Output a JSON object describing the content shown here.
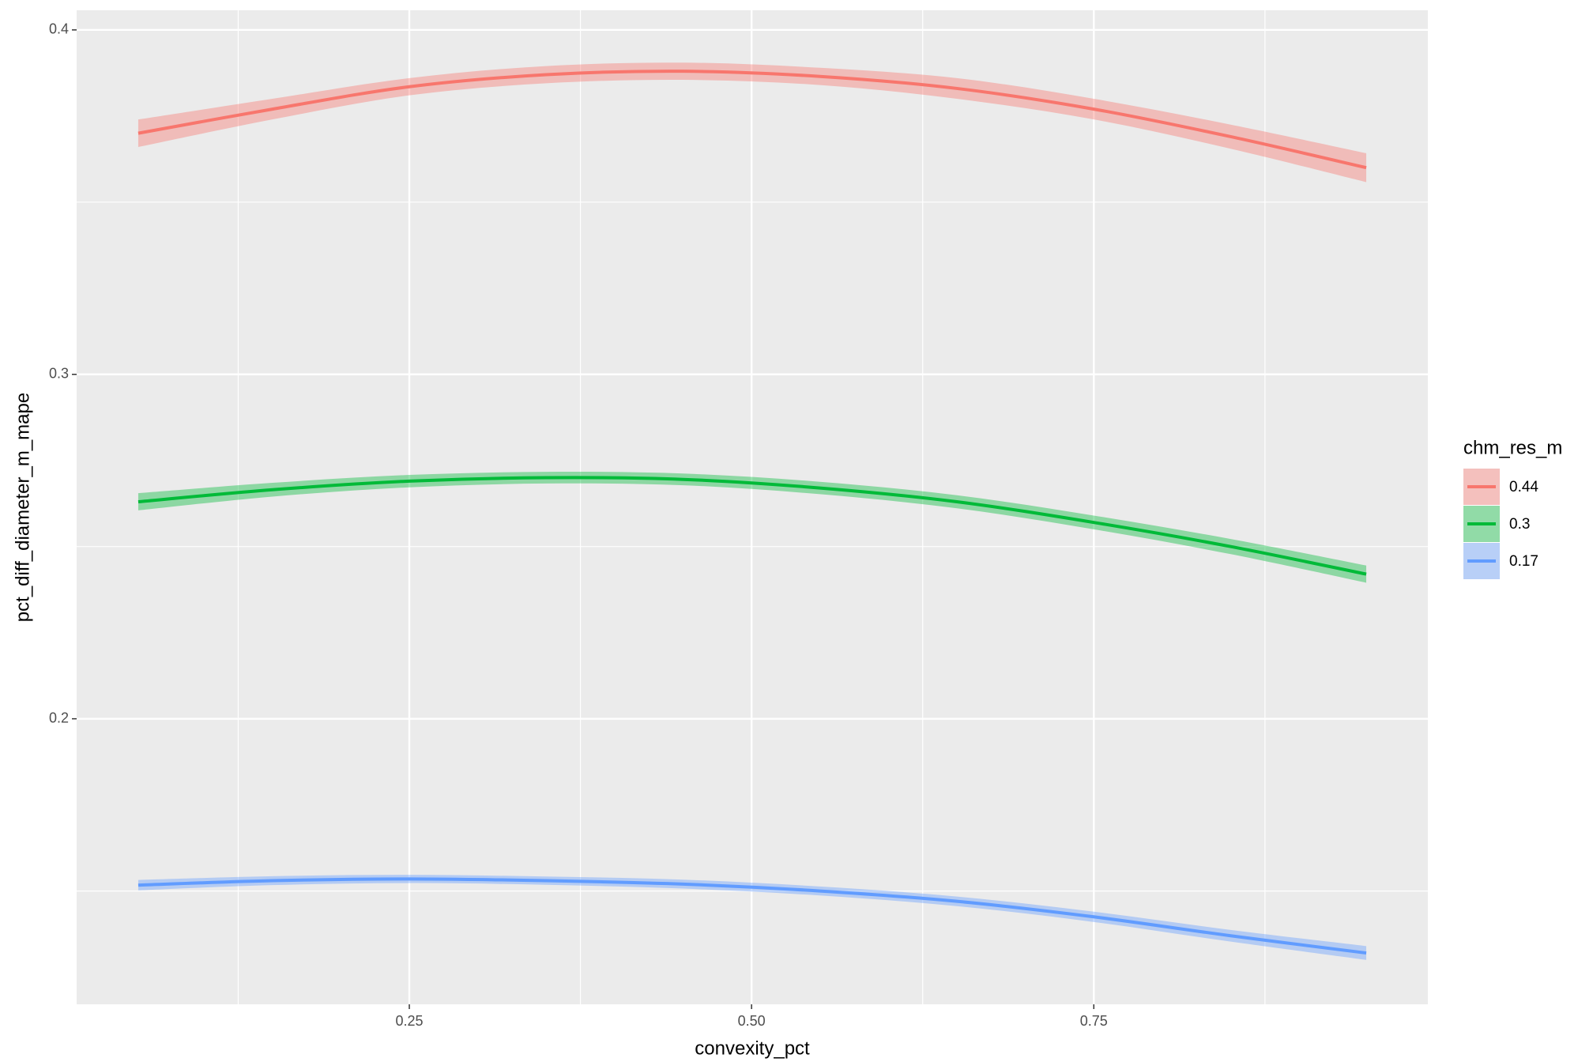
{
  "chart_data": {
    "type": "line",
    "x_label": "convexity_pct",
    "y_label": "pct_diff_diameter_m_mape",
    "legend_title": "chm_res_m",
    "legend_position": "right",
    "grid": true,
    "x": [
      0.052,
      0.15,
      0.25,
      0.35,
      0.45,
      0.55,
      0.65,
      0.75,
      0.85,
      0.949
    ],
    "series": [
      {
        "name": "0.44",
        "color": "#F8766D",
        "values": [
          0.37,
          0.377,
          0.3835,
          0.387,
          0.388,
          0.3865,
          0.383,
          0.377,
          0.369,
          0.36
        ],
        "lower": [
          0.366,
          0.374,
          0.381,
          0.3845,
          0.3855,
          0.384,
          0.38,
          0.374,
          0.3655,
          0.3558
        ],
        "upper": [
          0.374,
          0.38,
          0.386,
          0.3895,
          0.3905,
          0.389,
          0.386,
          0.38,
          0.3725,
          0.3642
        ]
      },
      {
        "name": "0.3",
        "color": "#00BA38",
        "values": [
          0.263,
          0.2665,
          0.269,
          0.27,
          0.2695,
          0.267,
          0.263,
          0.257,
          0.25,
          0.242
        ],
        "lower": [
          0.2605,
          0.2645,
          0.2672,
          0.2683,
          0.2678,
          0.2652,
          0.2611,
          0.255,
          0.2478,
          0.2395
        ],
        "upper": [
          0.2655,
          0.2685,
          0.2708,
          0.2717,
          0.2712,
          0.2688,
          0.2649,
          0.259,
          0.2522,
          0.2445
        ]
      },
      {
        "name": "0.17",
        "color": "#619CFF",
        "values": [
          0.1517,
          0.153,
          0.1535,
          0.153,
          0.152,
          0.15,
          0.147,
          0.1425,
          0.137,
          0.132
        ],
        "lower": [
          0.1502,
          0.1517,
          0.1523,
          0.1518,
          0.1507,
          0.1487,
          0.1456,
          0.141,
          0.1353,
          0.13
        ],
        "upper": [
          0.1532,
          0.1543,
          0.1547,
          0.1542,
          0.1533,
          0.1513,
          0.1484,
          0.144,
          0.1387,
          0.134
        ]
      }
    ],
    "xlim": [
      0.007,
      0.994
    ],
    "ylim": [
      0.1171,
      0.4057
    ],
    "xticks": [
      0.25,
      {
        "value": 0.5,
        "label": "0.50"
      },
      0.75
    ],
    "yticks": [
      0.2,
      0.3,
      0.4
    ]
  }
}
